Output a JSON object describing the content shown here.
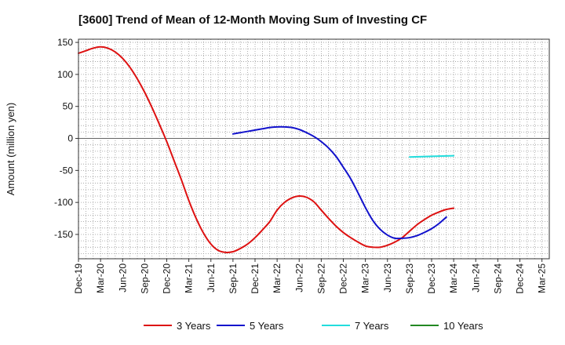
{
  "chart_data": {
    "type": "line",
    "title": "[3600]  Trend of Mean of 12-Month Moving Sum of Investing CF",
    "xlabel": "",
    "ylabel": "Amount (million yen)",
    "ylim": [
      -188,
      155
    ],
    "yticks": [
      150,
      100,
      50,
      0,
      -50,
      -100,
      -150
    ],
    "x_start_month": "Dec-19",
    "x_month_count": 64,
    "categories": [
      "Dec-19",
      "Mar-20",
      "Jun-20",
      "Sep-20",
      "Dec-20",
      "Mar-21",
      "Jun-21",
      "Sep-21",
      "Dec-21",
      "Mar-22",
      "Jun-22",
      "Sep-22",
      "Dec-22",
      "Mar-23",
      "Jun-23",
      "Sep-23",
      "Dec-23",
      "Mar-24",
      "Jun-24",
      "Sep-24",
      "Dec-24",
      "Mar-25"
    ],
    "grid": true,
    "legend_position": "bottom",
    "series": [
      {
        "name": "3 Years",
        "color": "#dd1111",
        "points": [
          [
            0,
            133
          ],
          [
            1,
            137
          ],
          [
            2,
            141
          ],
          [
            3,
            143
          ],
          [
            4,
            141
          ],
          [
            5,
            135
          ],
          [
            6,
            125
          ],
          [
            7,
            111
          ],
          [
            8,
            93
          ],
          [
            9,
            72
          ],
          [
            10,
            48
          ],
          [
            11,
            22
          ],
          [
            12,
            -5
          ],
          [
            13,
            -35
          ],
          [
            14,
            -65
          ],
          [
            15,
            -97
          ],
          [
            16,
            -125
          ],
          [
            17,
            -148
          ],
          [
            18,
            -165
          ],
          [
            19,
            -175
          ],
          [
            20,
            -178
          ],
          [
            21,
            -177
          ],
          [
            22,
            -172
          ],
          [
            23,
            -165
          ],
          [
            24,
            -155
          ],
          [
            25,
            -143
          ],
          [
            26,
            -130
          ],
          [
            27,
            -112
          ],
          [
            28,
            -100
          ],
          [
            29,
            -93
          ],
          [
            30,
            -90
          ],
          [
            31,
            -92
          ],
          [
            32,
            -99
          ],
          [
            33,
            -112
          ],
          [
            34,
            -125
          ],
          [
            35,
            -137
          ],
          [
            36,
            -147
          ],
          [
            37,
            -155
          ],
          [
            38,
            -162
          ],
          [
            39,
            -168
          ],
          [
            40,
            -170
          ],
          [
            41,
            -170
          ],
          [
            42,
            -167
          ],
          [
            43,
            -162
          ],
          [
            44,
            -155
          ],
          [
            45,
            -145
          ],
          [
            46,
            -135
          ],
          [
            47,
            -127
          ],
          [
            48,
            -120
          ],
          [
            49,
            -115
          ],
          [
            50,
            -111
          ],
          [
            51,
            -109
          ]
        ]
      },
      {
        "name": "5 Years",
        "color": "#1111cc",
        "points": [
          [
            21,
            7
          ],
          [
            22,
            9
          ],
          [
            23,
            11
          ],
          [
            24,
            13
          ],
          [
            25,
            15
          ],
          [
            26,
            17
          ],
          [
            27,
            18
          ],
          [
            28,
            18
          ],
          [
            29,
            17
          ],
          [
            30,
            14
          ],
          [
            31,
            9
          ],
          [
            32,
            3
          ],
          [
            33,
            -5
          ],
          [
            34,
            -15
          ],
          [
            35,
            -28
          ],
          [
            36,
            -45
          ],
          [
            37,
            -63
          ],
          [
            38,
            -85
          ],
          [
            39,
            -108
          ],
          [
            40,
            -128
          ],
          [
            41,
            -142
          ],
          [
            42,
            -151
          ],
          [
            43,
            -156
          ],
          [
            44,
            -156
          ],
          [
            45,
            -155
          ],
          [
            46,
            -152
          ],
          [
            47,
            -147
          ],
          [
            48,
            -141
          ],
          [
            49,
            -133
          ],
          [
            50,
            -123
          ]
        ]
      },
      {
        "name": "7 Years",
        "color": "#22dddd",
        "points": [
          [
            45,
            -29
          ],
          [
            51,
            -27
          ]
        ]
      },
      {
        "name": "10 Years",
        "color": "#228822",
        "points": []
      }
    ]
  }
}
